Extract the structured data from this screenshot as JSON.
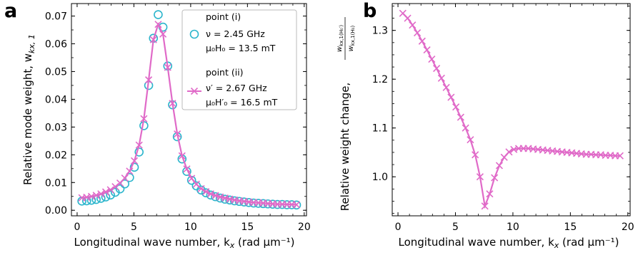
{
  "panels": [
    {
      "letter": "a",
      "ylabel": "Relative mode weight, w",
      "ylabel_sub": "kx, 1",
      "xlabel": "Longitudinal wave number, k",
      "xlabel_unit": " (rad μm⁻¹)"
    },
    {
      "letter": "b",
      "ylabel": "Relative weight change,",
      "ylabel_num": "w",
      "ylabel_num_sub": "kx,1(H₀′)",
      "ylabel_den": "w",
      "ylabel_den_sub": "kx,1(H₀)",
      "xlabel": "Longitudinal wave number, k",
      "xlabel_unit": " (rad μm⁻¹)"
    }
  ],
  "legend": [
    {
      "title": "point  (i)",
      "line1": "ν = 2.45 GHz",
      "line2": "μ₀H₀ = 13.5 mT"
    },
    {
      "title": "point  (ii)",
      "line1": "ν′ = 2.67 GHz",
      "line2": "μ₀H′₀ = 16.5 mT"
    }
  ],
  "colors": {
    "point_i": "#2bb5cc",
    "point_ii": "#e06ac8"
  },
  "chart_data": [
    {
      "type": "scatter",
      "xlim": [
        -0.5,
        20.2
      ],
      "ylim": [
        -0.002,
        0.0745
      ],
      "xticks": [
        0,
        5,
        10,
        15,
        20
      ],
      "yticks": [
        "0.00",
        "0.01",
        "0.02",
        "0.03",
        "0.04",
        "0.05",
        "0.06",
        "0.07"
      ],
      "series": [
        {
          "name": "point (i)",
          "marker": "circle",
          "x": [
            0.42,
            0.84,
            1.26,
            1.68,
            2.1,
            2.52,
            2.94,
            3.36,
            3.78,
            4.2,
            4.62,
            5.04,
            5.46,
            5.88,
            6.3,
            6.72,
            7.14,
            7.56,
            7.98,
            8.4,
            8.82,
            9.24,
            9.66,
            10.08,
            10.5,
            10.92,
            11.34,
            11.76,
            12.18,
            12.6,
            13.02,
            13.44,
            13.86,
            14.28,
            14.7,
            15.12,
            15.54,
            15.96,
            16.38,
            16.8,
            17.22,
            17.64,
            18.06,
            18.48,
            18.9,
            19.32
          ],
          "y": [
            0.0033,
            0.0034,
            0.0036,
            0.0039,
            0.0043,
            0.0048,
            0.0055,
            0.0065,
            0.0077,
            0.0095,
            0.0118,
            0.0155,
            0.021,
            0.0305,
            0.045,
            0.062,
            0.0705,
            0.066,
            0.052,
            0.038,
            0.0265,
            0.0185,
            0.014,
            0.0108,
            0.0088,
            0.0073,
            0.0063,
            0.0055,
            0.0049,
            0.0044,
            0.004,
            0.0037,
            0.0034,
            0.0032,
            0.003,
            0.0028,
            0.0026,
            0.0025,
            0.0024,
            0.0023,
            0.0022,
            0.0021,
            0.0021,
            0.002,
            0.002,
            0.0019
          ]
        },
        {
          "name": "point (ii)",
          "marker": "x",
          "x": [
            0.42,
            0.84,
            1.26,
            1.68,
            2.1,
            2.52,
            2.94,
            3.36,
            3.78,
            4.2,
            4.62,
            5.04,
            5.46,
            5.88,
            6.3,
            6.72,
            7.14,
            7.56,
            7.98,
            8.4,
            8.82,
            9.24,
            9.66,
            10.08,
            10.5,
            10.92,
            11.34,
            11.76,
            12.18,
            12.6,
            13.02,
            13.44,
            13.86,
            14.28,
            14.7,
            15.12,
            15.54,
            15.96,
            16.38,
            16.8,
            17.22,
            17.64,
            18.06,
            18.48,
            18.9,
            19.32
          ],
          "y": [
            0.0045,
            0.0047,
            0.005,
            0.0054,
            0.0059,
            0.0066,
            0.0074,
            0.0085,
            0.0098,
            0.0116,
            0.0141,
            0.0178,
            0.0235,
            0.033,
            0.047,
            0.0615,
            0.067,
            0.0635,
            0.0515,
            0.0385,
            0.0275,
            0.0196,
            0.0149,
            0.0115,
            0.0094,
            0.0078,
            0.0067,
            0.0059,
            0.0053,
            0.0048,
            0.0044,
            0.004,
            0.0037,
            0.0034,
            0.0032,
            0.003,
            0.0028,
            0.0027,
            0.0026,
            0.0024,
            0.0023,
            0.0022,
            0.0022,
            0.0021,
            0.0021,
            0.002
          ]
        }
      ]
    },
    {
      "type": "line",
      "xlim": [
        -0.5,
        20.2
      ],
      "ylim": [
        0.92,
        1.355
      ],
      "xticks": [
        0,
        5,
        10,
        15,
        20
      ],
      "yticks": [
        "1.0",
        "1.1",
        "1.2",
        "1.3"
      ],
      "series": [
        {
          "marker": "x",
          "x": [
            0.42,
            0.84,
            1.26,
            1.68,
            2.1,
            2.52,
            2.94,
            3.36,
            3.78,
            4.2,
            4.62,
            5.04,
            5.46,
            5.88,
            6.3,
            6.72,
            7.14,
            7.56,
            7.98,
            8.4,
            8.82,
            9.24,
            9.66,
            10.08,
            10.5,
            10.92,
            11.34,
            11.76,
            12.18,
            12.6,
            13.02,
            13.44,
            13.86,
            14.28,
            14.7,
            15.12,
            15.54,
            15.96,
            16.38,
            16.8,
            17.22,
            17.64,
            18.06,
            18.48,
            18.9,
            19.32
          ],
          "y": [
            1.335,
            1.325,
            1.311,
            1.295,
            1.278,
            1.26,
            1.241,
            1.222,
            1.202,
            1.183,
            1.163,
            1.143,
            1.122,
            1.1,
            1.076,
            1.045,
            1.0,
            0.94,
            0.965,
            0.998,
            1.023,
            1.04,
            1.051,
            1.056,
            1.058,
            1.058,
            1.058,
            1.057,
            1.056,
            1.055,
            1.054,
            1.053,
            1.052,
            1.051,
            1.05,
            1.049,
            1.048,
            1.047,
            1.046,
            1.046,
            1.045,
            1.045,
            1.044,
            1.044,
            1.043,
            1.043
          ]
        }
      ]
    }
  ]
}
